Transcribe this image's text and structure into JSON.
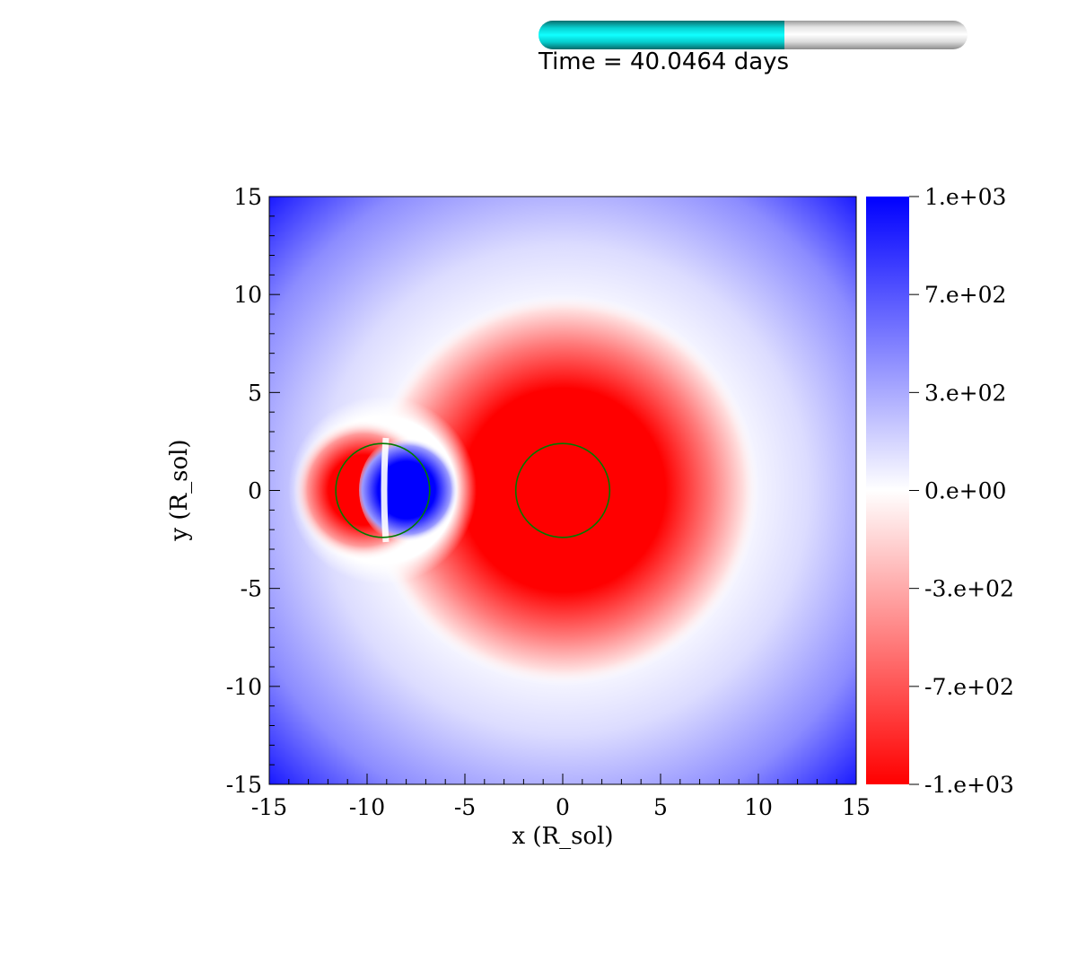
{
  "header": {
    "time_label": "Time = 40.0464 days",
    "progress": 0.573,
    "progress_color": "#10ffff"
  },
  "chart_data": {
    "type": "heatmap",
    "title": "",
    "xlabel": "x (R_sol)",
    "ylabel": "y (R_sol)",
    "xlim": [
      -15,
      15
    ],
    "ylim": [
      -15,
      15
    ],
    "x_ticks": [
      "-15",
      "-10",
      "-5",
      "0",
      "5",
      "10",
      "15"
    ],
    "y_ticks": [
      "15",
      "10",
      "5",
      "0",
      "-5",
      "-10",
      "-15"
    ],
    "colorbar": {
      "range": [
        -1000,
        1000
      ],
      "labels": [
        "1.e+03",
        "7.e+02",
        "3.e+02",
        "0.e+00",
        "-3.e+02",
        "-7.e+02",
        "-1.e+03"
      ],
      "label_values": [
        1000,
        666.7,
        333.3,
        0,
        -333.3,
        -666.7,
        -1000
      ],
      "high_color": "#0000ff",
      "mid_color": "#ffffff",
      "low_color": "#ff0000"
    },
    "features": [
      {
        "name": "primary-star",
        "x": 0,
        "y": 0,
        "radius": 2.4,
        "outline_color": "#007a00"
      },
      {
        "name": "companion-star",
        "x": -9.2,
        "y": 0,
        "radius": 2.4,
        "outline_color": "#007a00"
      }
    ],
    "field": {
      "background": "positive, increasing with distance from the centre",
      "primary_negative_region": {
        "x": 0,
        "y": 0,
        "radius": 10,
        "value": -1000
      },
      "companion_negative_lobe": {
        "x": -10.2,
        "y": 0,
        "value": -1000
      },
      "companion_positive_lobe": {
        "x": -7.8,
        "y": 0,
        "value": 1000
      }
    }
  }
}
